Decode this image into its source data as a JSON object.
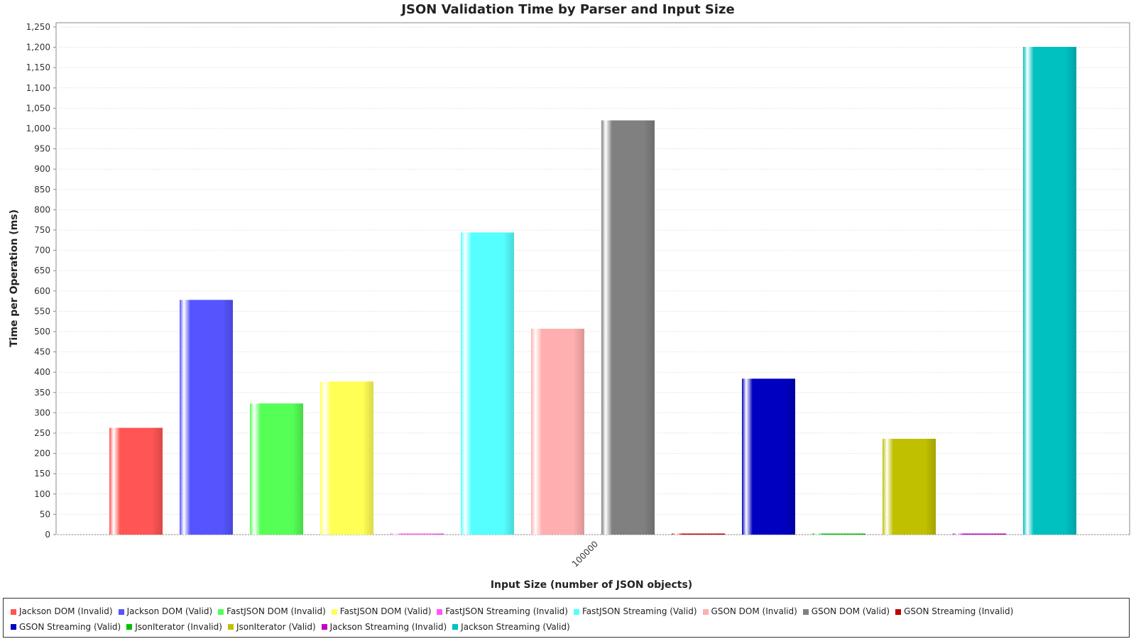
{
  "chart_data": {
    "type": "bar",
    "title": "JSON Validation Time by Parser and Input Size",
    "xlabel": "Input Size (number of JSON objects)",
    "ylabel": "Time per Operation (ms)",
    "categories": [
      "100000"
    ],
    "ylim": [
      0,
      1250
    ],
    "ytick_step": 50,
    "grid": true,
    "legend_position": "bottom",
    "series": [
      {
        "name": "Jackson DOM (Invalid)",
        "color": "#ff5555",
        "values": [
          263
        ]
      },
      {
        "name": "Jackson DOM (Valid)",
        "color": "#5555ff",
        "values": [
          578
        ]
      },
      {
        "name": "FastJSON DOM (Invalid)",
        "color": "#55ff55",
        "values": [
          323
        ]
      },
      {
        "name": "FastJSON DOM (Valid)",
        "color": "#ffff55",
        "values": [
          377
        ]
      },
      {
        "name": "FastJSON Streaming (Invalid)",
        "color": "#ff55ff",
        "values": [
          1
        ]
      },
      {
        "name": "FastJSON Streaming (Valid)",
        "color": "#55ffff",
        "values": [
          744
        ]
      },
      {
        "name": "GSON DOM (Invalid)",
        "color": "#ffafaf",
        "values": [
          507
        ]
      },
      {
        "name": "GSON DOM (Valid)",
        "color": "#808080",
        "values": [
          1020
        ]
      },
      {
        "name": "GSON Streaming (Invalid)",
        "color": "#c00000",
        "values": [
          1
        ]
      },
      {
        "name": "GSON Streaming (Valid)",
        "color": "#0000c0",
        "values": [
          384
        ]
      },
      {
        "name": "JsonIterator (Invalid)",
        "color": "#00c000",
        "values": [
          1
        ]
      },
      {
        "name": "JsonIterator (Valid)",
        "color": "#c0c000",
        "values": [
          236
        ]
      },
      {
        "name": "Jackson Streaming (Invalid)",
        "color": "#c000c0",
        "values": [
          1
        ]
      },
      {
        "name": "Jackson Streaming (Valid)",
        "color": "#00c0c0",
        "values": [
          1201
        ]
      }
    ]
  }
}
